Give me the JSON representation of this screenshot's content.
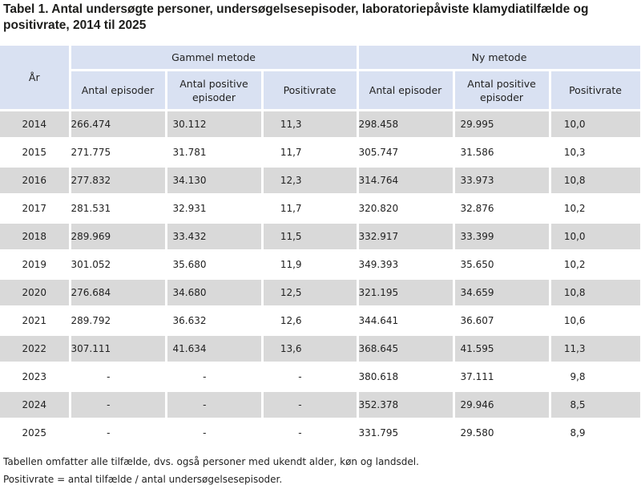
{
  "title": "Tabel 1. Antal undersøgte personer, undersøgelsesepisoder, laboratoriepåviste klamydiatilfælde og positivrate, 2014 til 2025",
  "table": {
    "year_header": "År",
    "group_headers": [
      "Gammel metode",
      "Ny metode"
    ],
    "sub_headers": [
      "Antal episoder",
      "Antal positive episoder",
      "Positivrate",
      "Antal episoder",
      "Antal positive episoder",
      "Positivrate"
    ],
    "rows": [
      [
        "2014",
        "266.474",
        "30.112",
        "11,3",
        "298.458",
        "29.995",
        "10,0"
      ],
      [
        "2015",
        "271.775",
        "31.781",
        "11,7",
        "305.747",
        "31.586",
        "10,3"
      ],
      [
        "2016",
        "277.832",
        "34.130",
        "12,3",
        "314.764",
        "33.973",
        "10,8"
      ],
      [
        "2017",
        "281.531",
        "32.931",
        "11,7",
        "320.820",
        "32.876",
        "10,2"
      ],
      [
        "2018",
        "289.969",
        "33.432",
        "11,5",
        "332.917",
        "33.399",
        "10,0"
      ],
      [
        "2019",
        "301.052",
        "35.680",
        "11,9",
        "349.393",
        "35.650",
        "10,2"
      ],
      [
        "2020",
        "276.684",
        "34.680",
        "12,5",
        "321.195",
        "34.659",
        "10,8"
      ],
      [
        "2021",
        "289.792",
        "36.632",
        "12,6",
        "344.641",
        "36.607",
        "10,6"
      ],
      [
        "2022",
        "307.111",
        "41.634",
        "13,6",
        "368.645",
        "41.595",
        "11,3"
      ],
      [
        "2023",
        "-",
        "-",
        "-",
        "380.618",
        "37.111",
        "9,8"
      ],
      [
        "2024",
        "-",
        "-",
        "-",
        "352.378",
        "29.946",
        "8,5"
      ],
      [
        "2025",
        "-",
        "-",
        "-",
        "331.795",
        "29.580",
        "8,9"
      ]
    ]
  },
  "notes": [
    "Tabellen omfatter alle tilfælde, dvs. også personer med ukendt alder, køn og landsdel.",
    "Positivrate = antal tilfælde / antal undersøgelsesepisoder."
  ],
  "colors": {
    "header_bg": "#d9e1f2",
    "odd_row_bg": "#d9d9d9",
    "even_row_bg": "#ffffff"
  }
}
